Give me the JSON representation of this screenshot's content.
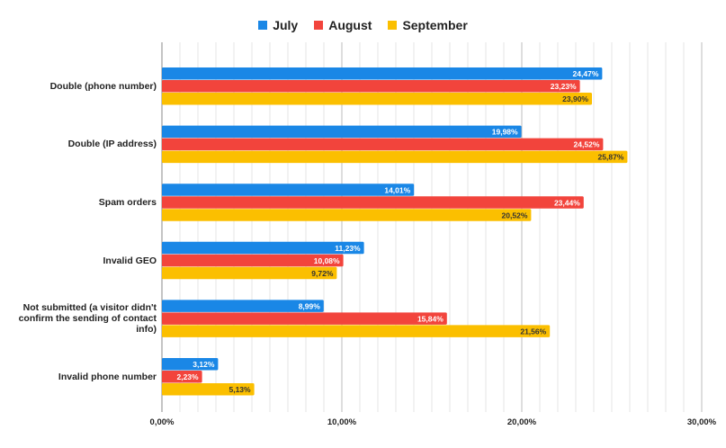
{
  "chart_data": {
    "type": "bar",
    "orientation": "horizontal",
    "title": "",
    "xlabel": "",
    "ylabel": "",
    "xlim": [
      0,
      30
    ],
    "grid": true,
    "legend_position": "top-center",
    "categories": [
      "Double (phone number)",
      "Double (IP address)",
      "Spam orders",
      "Invalid GEO",
      "Not submitted (a visitor didn't confirm the sending of contact info)",
      "Invalid phone number"
    ],
    "series": [
      {
        "name": "July",
        "color": "#1a87e6",
        "values": [
          24.47,
          19.98,
          14.01,
          11.23,
          8.99,
          3.12
        ],
        "labels": [
          "24,47%",
          "19,98%",
          "14,01%",
          "11,23%",
          "8,99%",
          "3,12%"
        ],
        "label_color": "#ffffff"
      },
      {
        "name": "August",
        "color": "#f2443c",
        "values": [
          23.23,
          24.52,
          23.44,
          10.08,
          15.84,
          2.23
        ],
        "labels": [
          "23,23%",
          "24,52%",
          "23,44%",
          "10,08%",
          "15,84%",
          "2,23%"
        ],
        "label_color": "#ffffff"
      },
      {
        "name": "September",
        "color": "#fbbf00",
        "values": [
          23.9,
          25.87,
          20.52,
          9.72,
          21.56,
          5.13
        ],
        "labels": [
          "23,90%",
          "25,87%",
          "20,52%",
          "9,72%",
          "21,56%",
          "5,13%"
        ],
        "label_color": "#333333"
      }
    ],
    "ticks": [
      {
        "value": 0,
        "label": "0,00%"
      },
      {
        "value": 10,
        "label": "10,00%"
      },
      {
        "value": 20,
        "label": "20,00%"
      },
      {
        "value": 30,
        "label": "30,00%"
      }
    ]
  }
}
